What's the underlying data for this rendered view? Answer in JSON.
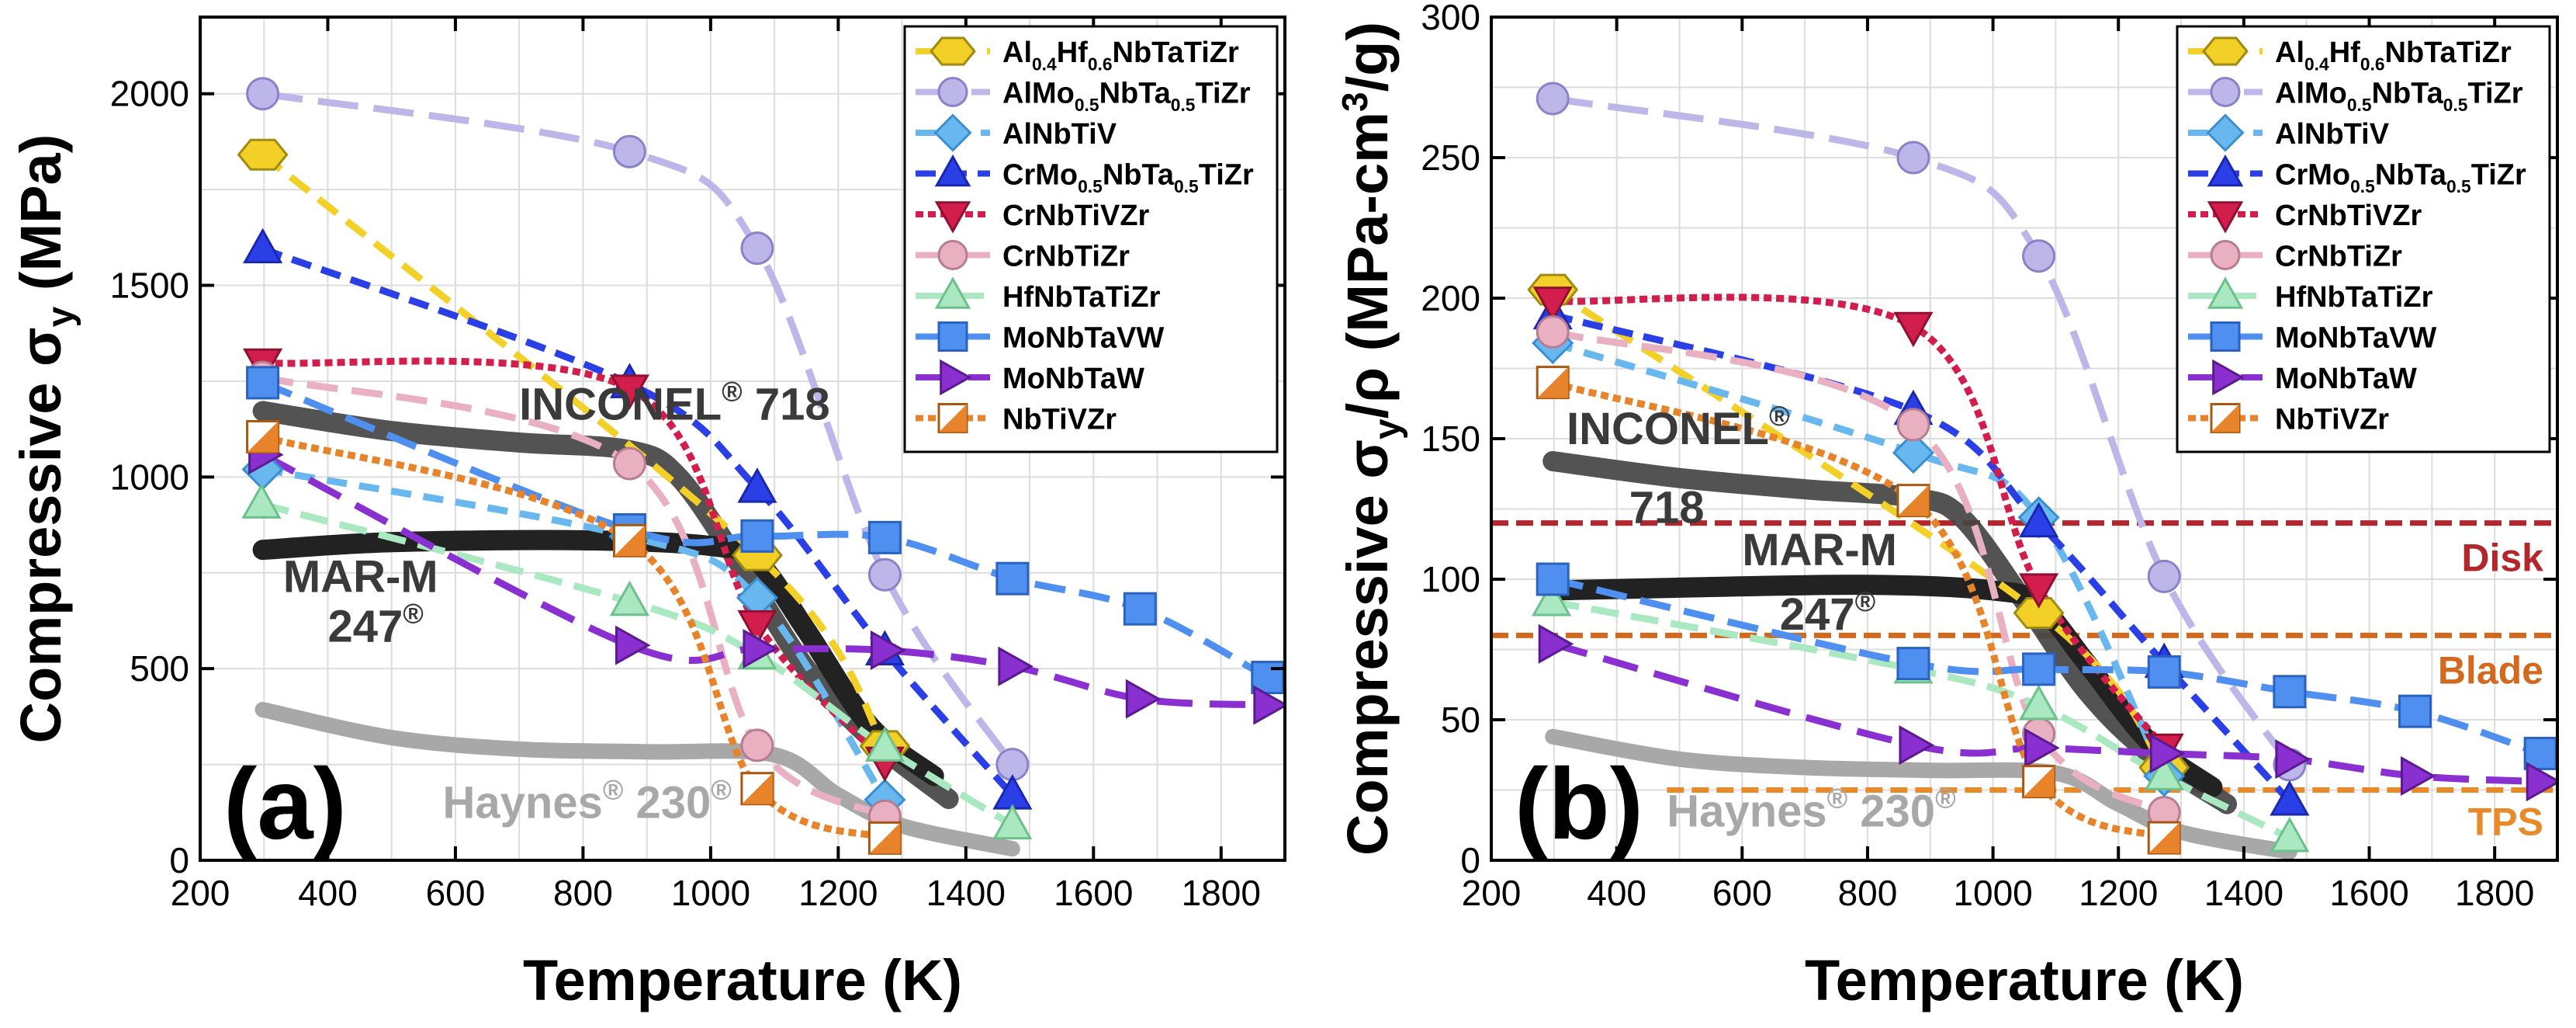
{
  "series_styles": {
    "Al0.4Hf0.6NbTaTiZr": {
      "color": "#f2d028",
      "stroke": "#a08a10",
      "marker": "hexagon"
    },
    "AlMo0.5NbTa0.5TiZr": {
      "color": "#bdb6e8",
      "stroke": "#8a82c8",
      "marker": "circle"
    },
    "AlNbTiV": {
      "color": "#68b8ef",
      "stroke": "#3a8fd0",
      "marker": "diamond"
    },
    "CrMo0.5NbTa0.5TiZr": {
      "color": "#2a3fe6",
      "stroke": "#1a28b0",
      "marker": "triangle-up"
    },
    "CrNbTiVZr": {
      "color": "#d11e4c",
      "stroke": "#8f1030",
      "marker": "triangle-down"
    },
    "CrNbTiZr": {
      "color": "#e9b0c2",
      "stroke": "#b77c90",
      "marker": "circle"
    },
    "HfNbTaTiZr": {
      "color": "#a9e8c0",
      "stroke": "#6cc08a",
      "marker": "triangle-up"
    },
    "MoNbTaVW": {
      "color": "#4f8ff0",
      "stroke": "#2a62c0",
      "marker": "square"
    },
    "MoNbTaW": {
      "color": "#8a2fd0",
      "stroke": "#5a1a90",
      "marker": "triangle-right"
    },
    "NbTiVZr": {
      "color": "#e7832a",
      "stroke": "#a85810",
      "marker": "half-square"
    },
    "INCONEL 718": {
      "color": "#444444",
      "stroke": "#444444",
      "marker": "none"
    },
    "MAR-M 247": {
      "color": "#222222",
      "stroke": "#222222",
      "marker": "none"
    },
    "Haynes 230": {
      "color": "#a8a8a8",
      "stroke": "#a8a8a8",
      "marker": "none"
    }
  },
  "chart_data": [
    {
      "type": "line",
      "panel_label": "(a)",
      "xlabel": "Temperature (K)",
      "ylabel": "Compressive σy (MPa)",
      "xlim": [
        200,
        1900
      ],
      "ylim": [
        0,
        2200
      ],
      "xticks": [
        200,
        400,
        600,
        800,
        1000,
        1200,
        1400,
        1600,
        1800
      ],
      "yticks": [
        0,
        500,
        1000,
        1500,
        2000
      ],
      "grid": true,
      "legend_position": "top-right",
      "legend": [
        {
          "key": "Al0.4Hf0.6NbTaTiZr",
          "base": "Al",
          "parts": [
            [
              "0.4",
              "sub"
            ],
            [
              "Hf",
              ""
            ],
            [
              "0.6",
              "sub"
            ],
            [
              "NbTaTiZr",
              ""
            ]
          ]
        },
        {
          "key": "AlMo0.5NbTa0.5TiZr",
          "base": "AlMo",
          "parts": [
            [
              "0.5",
              "sub"
            ],
            [
              "NbTa",
              ""
            ],
            [
              "0.5",
              "sub"
            ],
            [
              "TiZr",
              ""
            ]
          ]
        },
        {
          "key": "AlNbTiV",
          "base": "AlNbTiV",
          "parts": []
        },
        {
          "key": "CrMo0.5NbTa0.5TiZr",
          "base": "CrMo",
          "parts": [
            [
              "0.5",
              "sub"
            ],
            [
              "NbTa",
              ""
            ],
            [
              "0.5",
              "sub"
            ],
            [
              "TiZr",
              ""
            ]
          ]
        },
        {
          "key": "CrNbTiVZr",
          "base": "CrNbTiVZr",
          "parts": []
        },
        {
          "key": "CrNbTiZr",
          "base": "CrNbTiZr",
          "parts": []
        },
        {
          "key": "HfNbTaTiZr",
          "base": "HfNbTaTiZr",
          "parts": []
        },
        {
          "key": "MoNbTaVW",
          "base": "MoNbTaVW",
          "parts": []
        },
        {
          "key": "MoNbTaW",
          "base": "MoNbTaW",
          "parts": []
        },
        {
          "key": "NbTiVZr",
          "base": "NbTiVZr",
          "parts": []
        }
      ],
      "series": [
        {
          "name": "Al0.4Hf0.6NbTaTiZr",
          "x": [
            298,
            1073,
            1273
          ],
          "y": [
            1841,
            796,
            298
          ]
        },
        {
          "name": "AlMo0.5NbTa0.5TiZr",
          "x": [
            298,
            873,
            1073,
            1273,
            1473
          ],
          "y": [
            2000,
            1849,
            1597,
            745,
            250
          ]
        },
        {
          "name": "AlNbTiV",
          "x": [
            298,
            873,
            1073,
            1273
          ],
          "y": [
            1020,
            845,
            685,
            158
          ]
        },
        {
          "name": "CrMo0.5NbTa0.5TiZr",
          "x": [
            298,
            873,
            1073,
            1273,
            1473
          ],
          "y": [
            1595,
            1243,
            970,
            546,
            170
          ]
        },
        {
          "name": "CrNbTiVZr",
          "x": [
            298,
            873,
            1073,
            1273
          ],
          "y": [
            1298,
            1230,
            615,
            259
          ]
        },
        {
          "name": "CrNbTiZr",
          "x": [
            298,
            873,
            1073,
            1273
          ],
          "y": [
            1260,
            1035,
            300,
            115
          ]
        },
        {
          "name": "HfNbTaTiZr",
          "x": [
            296,
            873,
            1073,
            1273,
            1473
          ],
          "y": [
            929,
            675,
            535,
            295,
            92
          ]
        },
        {
          "name": "MoNbTaVW",
          "x": [
            298,
            873,
            1073,
            1273,
            1473,
            1673,
            1873
          ],
          "y": [
            1246,
            862,
            846,
            842,
            735,
            656,
            477
          ]
        },
        {
          "name": "MoNbTaW",
          "x": [
            298,
            873,
            1073,
            1273,
            1473,
            1673,
            1873
          ],
          "y": [
            1058,
            561,
            552,
            548,
            506,
            421,
            405
          ]
        },
        {
          "name": "NbTiVZr",
          "x": [
            298,
            873,
            1073,
            1273
          ],
          "y": [
            1105,
            834,
            187,
            58
          ]
        },
        {
          "name": "INCONEL 718",
          "x": [
            298,
            500,
            700,
            873,
            950,
            1050,
            1150,
            1250,
            1373
          ],
          "y": [
            1172,
            1120,
            1090,
            1070,
            1000,
            760,
            500,
            320,
            160
          ]
        },
        {
          "name": "MAR-M 247",
          "x": [
            298,
            500,
            800,
            1000,
            1073,
            1150,
            1250,
            1350
          ],
          "y": [
            810,
            830,
            835,
            820,
            780,
            600,
            350,
            220
          ]
        },
        {
          "name": "Haynes 230",
          "x": [
            298,
            500,
            700,
            900,
            1100,
            1200,
            1300,
            1473
          ],
          "y": [
            393,
            320,
            290,
            283,
            275,
            170,
            90,
            30
          ]
        }
      ],
      "annotations": [
        {
          "text": "INCONEL",
          "sup": "®",
          "tail": " 718",
          "x": 700,
          "y": 1150
        },
        {
          "text": "MAR-M",
          "x": 330,
          "y": 700
        },
        {
          "text": "247",
          "sup": "®",
          "x": 400,
          "y": 570
        },
        {
          "text": "Haynes",
          "sup": "®",
          "tail": " 230",
          "sup2": "®",
          "x": 580,
          "y": 110
        }
      ]
    },
    {
      "type": "line",
      "panel_label": "(b)",
      "xlabel": "Temperature (K)",
      "ylabel": "Compressive σy/ρ (MPa-cm³/g)",
      "xlim": [
        200,
        1900
      ],
      "ylim": [
        0,
        300
      ],
      "xticks": [
        200,
        400,
        600,
        800,
        1000,
        1200,
        1400,
        1600,
        1800
      ],
      "yticks": [
        0,
        50,
        100,
        150,
        200,
        250,
        300
      ],
      "grid": true,
      "legend_position": "top-right",
      "legend": [
        {
          "key": "Al0.4Hf0.6NbTaTiZr",
          "base": "Al",
          "parts": [
            [
              "0.4",
              "sub"
            ],
            [
              "Hf",
              ""
            ],
            [
              "0.6",
              "sub"
            ],
            [
              "NbTaTiZr",
              ""
            ]
          ]
        },
        {
          "key": "AlMo0.5NbTa0.5TiZr",
          "base": "AlMo",
          "parts": [
            [
              "0.5",
              "sub"
            ],
            [
              "NbTa",
              ""
            ],
            [
              "0.5",
              "sub"
            ],
            [
              "TiZr",
              ""
            ]
          ]
        },
        {
          "key": "AlNbTiV",
          "base": "AlNbTiV",
          "parts": []
        },
        {
          "key": "CrMo0.5NbTa0.5TiZr",
          "base": "CrMo",
          "parts": [
            [
              "0.5",
              "sub"
            ],
            [
              "NbTa",
              ""
            ],
            [
              "0.5",
              "sub"
            ],
            [
              "TiZr",
              ""
            ]
          ]
        },
        {
          "key": "CrNbTiVZr",
          "base": "CrNbTiVZr",
          "parts": []
        },
        {
          "key": "CrNbTiZr",
          "base": "CrNbTiZr",
          "parts": []
        },
        {
          "key": "HfNbTaTiZr",
          "base": "HfNbTaTiZr",
          "parts": []
        },
        {
          "key": "MoNbTaVW",
          "base": "MoNbTaVW",
          "parts": []
        },
        {
          "key": "MoNbTaW",
          "base": "MoNbTaW",
          "parts": []
        },
        {
          "key": "NbTiVZr",
          "base": "NbTiVZr",
          "parts": []
        }
      ],
      "series": [
        {
          "name": "Al0.4Hf0.6NbTaTiZr",
          "x": [
            298,
            1073,
            1273
          ],
          "y": [
            203,
            88,
            33
          ]
        },
        {
          "name": "AlMo0.5NbTa0.5TiZr",
          "x": [
            298,
            873,
            1073,
            1273,
            1473
          ],
          "y": [
            271,
            250,
            215,
            101,
            34
          ]
        },
        {
          "name": "AlNbTiV",
          "x": [
            298,
            873,
            1073,
            1273
          ],
          "y": [
            184,
            145,
            122,
            30
          ]
        },
        {
          "name": "CrMo0.5NbTa0.5TiZr",
          "x": [
            298,
            873,
            1073,
            1273,
            1473
          ],
          "y": [
            194,
            160,
            120,
            70,
            21
          ]
        },
        {
          "name": "CrNbTiVZr",
          "x": [
            298,
            873,
            1073,
            1273
          ],
          "y": [
            199,
            190,
            97,
            40
          ]
        },
        {
          "name": "CrNbTiZr",
          "x": [
            298,
            873,
            1073,
            1273
          ],
          "y": [
            188,
            155,
            45,
            17
          ]
        },
        {
          "name": "HfNbTaTiZr",
          "x": [
            296,
            873,
            1073,
            1273,
            1473
          ],
          "y": [
            92,
            68,
            55,
            30,
            8
          ]
        },
        {
          "name": "MoNbTaVW",
          "x": [
            298,
            873,
            1073,
            1273,
            1473,
            1673,
            1873
          ],
          "y": [
            100,
            70,
            68,
            67,
            60,
            53,
            38
          ]
        },
        {
          "name": "MoNbTaW",
          "x": [
            298,
            873,
            1073,
            1273,
            1473,
            1673,
            1873
          ],
          "y": [
            77,
            41,
            40,
            38,
            36,
            30,
            28
          ]
        },
        {
          "name": "NbTiVZr",
          "x": [
            298,
            873,
            1073,
            1273
          ],
          "y": [
            170,
            128,
            28,
            8
          ]
        },
        {
          "name": "INCONEL 718",
          "x": [
            298,
            500,
            700,
            873,
            950,
            1050,
            1150,
            1250,
            1373
          ],
          "y": [
            142,
            136,
            132,
            129,
            122,
            92,
            60,
            38,
            20
          ]
        },
        {
          "name": "MAR-M 247",
          "x": [
            298,
            500,
            800,
            1000,
            1073,
            1150,
            1250,
            1350
          ],
          "y": [
            96,
            97,
            98,
            96,
            91,
            70,
            42,
            26
          ]
        },
        {
          "name": "Haynes 230",
          "x": [
            298,
            500,
            700,
            900,
            1100,
            1200,
            1300,
            1473
          ],
          "y": [
            44,
            36,
            33,
            32,
            31,
            20,
            10,
            3
          ]
        }
      ],
      "reference_lines": [
        {
          "label": "Disk",
          "y": 120,
          "color": "#b3262c"
        },
        {
          "label": "Blade",
          "y": 80,
          "color": "#d2691e"
        },
        {
          "label": "TPS",
          "y": 25,
          "color": "#e88a2a"
        }
      ],
      "annotations": [
        {
          "text": "INCONEL",
          "sup": "®",
          "x": 320,
          "y": 148
        },
        {
          "text": "718",
          "x": 420,
          "y": 120
        },
        {
          "text": "MAR-M",
          "x": 600,
          "y": 105
        },
        {
          "text": "247",
          "sup": "®",
          "x": 660,
          "y": 82
        },
        {
          "text": "Haynes",
          "sup": "®",
          "tail": " 230",
          "sup2": "®",
          "x": 480,
          "y": 12
        }
      ]
    }
  ]
}
